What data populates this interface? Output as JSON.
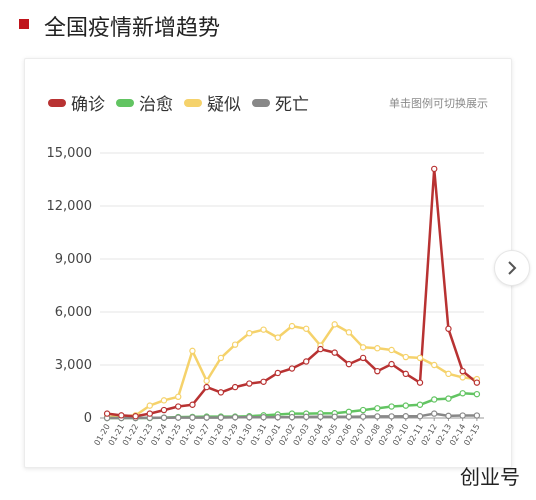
{
  "header": {
    "title": "全国疫情新增趋势"
  },
  "legend_hint": "单击图例可切换展示",
  "watermark": "创业号",
  "colors": {
    "accent": "#c0141b",
    "confirmed": "#b83232",
    "cured": "#62c462",
    "suspected": "#f5d26b",
    "dead": "#888888"
  },
  "icons": {
    "next": "chevron-right-icon"
  },
  "chart_data": {
    "type": "line",
    "title": "全国疫情新增趋势",
    "x": [
      "01-20",
      "01-21",
      "01-22",
      "01-23",
      "01-24",
      "01-25",
      "01-26",
      "01-27",
      "01-28",
      "01-29",
      "01-30",
      "01-31",
      "02-01",
      "02-02",
      "02-03",
      "02-04",
      "02-05",
      "02-06",
      "02-07",
      "02-08",
      "02-09",
      "02-10",
      "02-11",
      "02-12",
      "02-13",
      "02-14",
      "02-15"
    ],
    "y_ticks": [
      "0",
      "3,000",
      "6,000",
      "9,000",
      "12,000",
      "15,000"
    ],
    "ylim": [
      0,
      15000
    ],
    "grid": true,
    "legend_position": "top-left",
    "series": [
      {
        "name": "确诊",
        "color": "#b83232",
        "values": [
          250,
          150,
          100,
          250,
          450,
          650,
          750,
          1750,
          1450,
          1750,
          1950,
          2050,
          2550,
          2800,
          3200,
          3900,
          3700,
          3050,
          3400,
          2650,
          3050,
          2500,
          2000,
          14100,
          5050,
          2650,
          2000
        ]
      },
      {
        "name": "治愈",
        "color": "#62c462",
        "values": [
          0,
          0,
          0,
          0,
          20,
          50,
          60,
          80,
          80,
          80,
          100,
          150,
          200,
          250,
          250,
          260,
          270,
          350,
          450,
          550,
          650,
          700,
          750,
          1050,
          1100,
          1400,
          1350
        ]
      },
      {
        "name": "疑似",
        "color": "#f5d26b",
        "values": [
          50,
          100,
          150,
          700,
          1000,
          1200,
          3800,
          2100,
          3400,
          4150,
          4800,
          5000,
          4550,
          5200,
          5050,
          4100,
          5300,
          4850,
          4000,
          3950,
          3850,
          3450,
          3400,
          3000,
          2500,
          2300,
          2200
        ]
      },
      {
        "name": "死亡",
        "color": "#888888",
        "values": [
          0,
          0,
          0,
          10,
          15,
          20,
          25,
          25,
          25,
          40,
          40,
          45,
          45,
          50,
          65,
          70,
          70,
          70,
          80,
          90,
          90,
          100,
          100,
          250,
          120,
          140,
          140
        ]
      }
    ]
  }
}
